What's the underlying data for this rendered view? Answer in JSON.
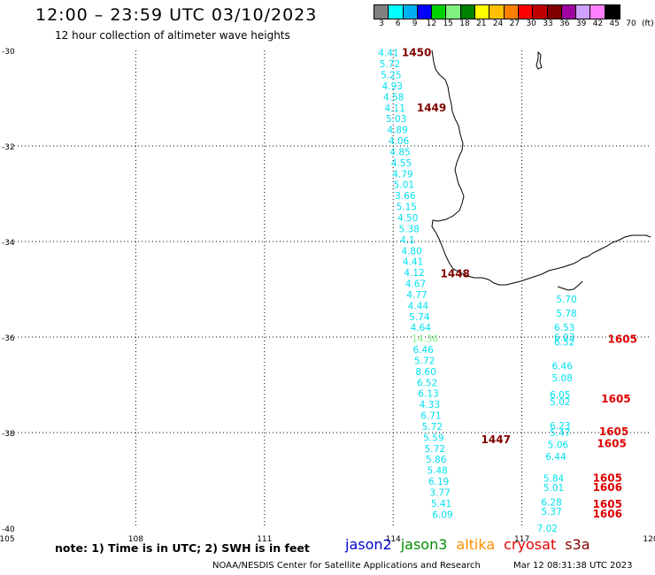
{
  "title": "12:00 – 23:59 UTC 03/10/2023",
  "subtitle": "12 hour collection of altimeter wave heights",
  "scale": {
    "colors": [
      "#808080",
      "#00ffff",
      "#00b0f0",
      "#0000ff",
      "#00d000",
      "#80f080",
      "#008000",
      "#ffff00",
      "#ffc000",
      "#ff8000",
      "#ff0000",
      "#c00000",
      "#800000",
      "#a000a0",
      "#d0a0ff",
      "#ff80ff",
      "#000000"
    ],
    "labels": [
      "3",
      "6",
      "9",
      "12",
      "15",
      "18",
      "21",
      "24",
      "27",
      "30",
      "33",
      "36",
      "39",
      "42",
      "45",
      "70",
      "(ft)"
    ]
  },
  "axes": {
    "lat_ticks": [
      "-30",
      "-32",
      "-34",
      "-36",
      "-38",
      "-40"
    ],
    "lon_ticks": [
      "105",
      "108",
      "111",
      "114",
      "117",
      "120"
    ]
  },
  "chart_data": {
    "type": "scatter",
    "xlabel": "",
    "ylabel": "",
    "xlim": [
      105,
      120
    ],
    "ylim": [
      -40,
      -30
    ],
    "units": "ft",
    "tracks": [
      {
        "swh_color": "#00e0f0",
        "time_color": "#800000",
        "points": [
          {
            "lon": 113.65,
            "lat": -30.05,
            "swh": "4.41"
          },
          {
            "lon": 113.68,
            "lat": -30.28,
            "swh": "5.72"
          },
          {
            "lon": 113.71,
            "lat": -30.51,
            "swh": "5.25"
          },
          {
            "lon": 113.74,
            "lat": -30.74,
            "swh": "4.93"
          },
          {
            "lon": 113.77,
            "lat": -30.97,
            "swh": "4.58"
          },
          {
            "lon": 113.8,
            "lat": -31.2,
            "swh": "4.11"
          },
          {
            "lon": 113.83,
            "lat": -31.43,
            "swh": "5.03"
          },
          {
            "lon": 113.86,
            "lat": -31.66,
            "swh": "4.89"
          },
          {
            "lon": 113.89,
            "lat": -31.89,
            "swh": "4.06"
          },
          {
            "lon": 113.92,
            "lat": -32.12,
            "swh": "4.85"
          },
          {
            "lon": 113.95,
            "lat": -32.35,
            "swh": "4.55"
          },
          {
            "lon": 113.98,
            "lat": -32.58,
            "swh": "4.79"
          },
          {
            "lon": 114.01,
            "lat": -32.81,
            "swh": "5.01"
          },
          {
            "lon": 114.04,
            "lat": -33.04,
            "swh": "3.66"
          },
          {
            "lon": 114.07,
            "lat": -33.27,
            "swh": "5.15"
          },
          {
            "lon": 114.1,
            "lat": -33.5,
            "swh": "4.50"
          },
          {
            "lon": 114.13,
            "lat": -33.73,
            "swh": "5.38"
          },
          {
            "lon": 114.16,
            "lat": -33.96,
            "swh": "4.1"
          },
          {
            "lon": 114.19,
            "lat": -34.19,
            "swh": "4.80"
          },
          {
            "lon": 114.22,
            "lat": -34.42,
            "swh": "4.41"
          },
          {
            "lon": 114.25,
            "lat": -34.65,
            "swh": "4.12"
          },
          {
            "lon": 114.28,
            "lat": -34.88,
            "swh": "4.67"
          },
          {
            "lon": 114.31,
            "lat": -35.11,
            "swh": "4.77"
          },
          {
            "lon": 114.34,
            "lat": -35.34,
            "swh": "4.44"
          },
          {
            "lon": 114.37,
            "lat": -35.57,
            "swh": "5.74"
          },
          {
            "lon": 114.4,
            "lat": -35.8,
            "swh": "4.64"
          },
          {
            "lon": 114.43,
            "lat": -36.03,
            "swh": "14.36",
            "color": "#80f080"
          },
          {
            "lon": 114.46,
            "lat": -36.26,
            "swh": "6.46"
          },
          {
            "lon": 114.49,
            "lat": -36.49,
            "swh": "5.72"
          },
          {
            "lon": 114.52,
            "lat": -36.72,
            "swh": "8.60"
          },
          {
            "lon": 114.55,
            "lat": -36.95,
            "swh": "6.52"
          },
          {
            "lon": 114.58,
            "lat": -37.18,
            "swh": "6.13"
          },
          {
            "lon": 114.61,
            "lat": -37.41,
            "swh": "4.33"
          },
          {
            "lon": 114.64,
            "lat": -37.64,
            "swh": "6.71"
          },
          {
            "lon": 114.67,
            "lat": -37.87,
            "swh": "5.72"
          },
          {
            "lon": 114.7,
            "lat": -38.1,
            "swh": "5.59"
          },
          {
            "lon": 114.73,
            "lat": -38.33,
            "swh": "5.72"
          },
          {
            "lon": 114.76,
            "lat": -38.56,
            "swh": "5.86"
          },
          {
            "lon": 114.79,
            "lat": -38.79,
            "swh": "5.48"
          },
          {
            "lon": 114.82,
            "lat": -39.02,
            "swh": "6.19"
          },
          {
            "lon": 114.85,
            "lat": -39.25,
            "swh": "3.77"
          },
          {
            "lon": 114.88,
            "lat": -39.48,
            "swh": "5.41"
          },
          {
            "lon": 114.91,
            "lat": -39.71,
            "swh": "6.09"
          }
        ],
        "times": [
          {
            "lon": 114.2,
            "lat": -30.05,
            "label": "1450"
          },
          {
            "lon": 114.55,
            "lat": -31.2,
            "label": "1449"
          },
          {
            "lon": 115.1,
            "lat": -34.68,
            "label": "1448"
          },
          {
            "lon": 116.05,
            "lat": -38.15,
            "label": "1447"
          }
        ]
      },
      {
        "swh_color": "#00e0f0",
        "time_color": "#e00000",
        "points": [
          {
            "lon": 117.8,
            "lat": -35.2,
            "swh": "5.70"
          },
          {
            "lon": 117.8,
            "lat": -35.5,
            "swh": "5.78"
          },
          {
            "lon": 117.75,
            "lat": -35.8,
            "swh": "6.53"
          },
          {
            "lon": 117.75,
            "lat": -36.0,
            "swh": "6.03"
          },
          {
            "lon": 117.75,
            "lat": -36.1,
            "swh": "6.52"
          },
          {
            "lon": 117.7,
            "lat": -36.6,
            "swh": "6.46"
          },
          {
            "lon": 117.7,
            "lat": -36.85,
            "swh": "5.08"
          },
          {
            "lon": 117.65,
            "lat": -37.2,
            "swh": "6.05"
          },
          {
            "lon": 117.65,
            "lat": -37.35,
            "swh": "5.02"
          },
          {
            "lon": 117.65,
            "lat": -37.85,
            "swh": "6.23"
          },
          {
            "lon": 117.65,
            "lat": -38.0,
            "swh": "5.47"
          },
          {
            "lon": 117.6,
            "lat": -38.25,
            "swh": "5.06"
          },
          {
            "lon": 117.55,
            "lat": -38.5,
            "swh": "6.44"
          },
          {
            "lon": 117.5,
            "lat": -38.95,
            "swh": "5.84"
          },
          {
            "lon": 117.5,
            "lat": -39.15,
            "swh": "5.01"
          },
          {
            "lon": 117.45,
            "lat": -39.45,
            "swh": "6.28"
          },
          {
            "lon": 117.45,
            "lat": -39.65,
            "swh": "5.37"
          },
          {
            "lon": 117.35,
            "lat": -40.0,
            "swh": "7.02"
          }
        ],
        "times": [
          {
            "lon": 119.0,
            "lat": -36.05,
            "label": "1605"
          },
          {
            "lon": 118.85,
            "lat": -37.3,
            "label": "1605"
          },
          {
            "lon": 118.8,
            "lat": -37.98,
            "label": "1605"
          },
          {
            "lon": 118.75,
            "lat": -38.23,
            "label": "1605"
          },
          {
            "lon": 118.65,
            "lat": -38.95,
            "label": "1605"
          },
          {
            "lon": 118.65,
            "lat": -39.15,
            "label": "1606"
          },
          {
            "lon": 118.65,
            "lat": -39.5,
            "label": "1605"
          },
          {
            "lon": 118.65,
            "lat": -39.7,
            "label": "1606"
          }
        ]
      }
    ]
  },
  "footer": {
    "note": "note:  1) Time is in UTC;  2) SWH is in feet",
    "legend": [
      {
        "name": "jason2",
        "color": "#0000d0"
      },
      {
        "name": "jason3",
        "color": "#009000"
      },
      {
        "name": "altika",
        "color": "#ff9000"
      },
      {
        "name": "cryosat",
        "color": "#e00000"
      },
      {
        "name": "s3a",
        "color": "#800000"
      }
    ],
    "credit": "NOAA/NESDIS Center for Satellite Applications and Research",
    "stamp": "Mar 12 08:31:38 UTC 2023"
  }
}
